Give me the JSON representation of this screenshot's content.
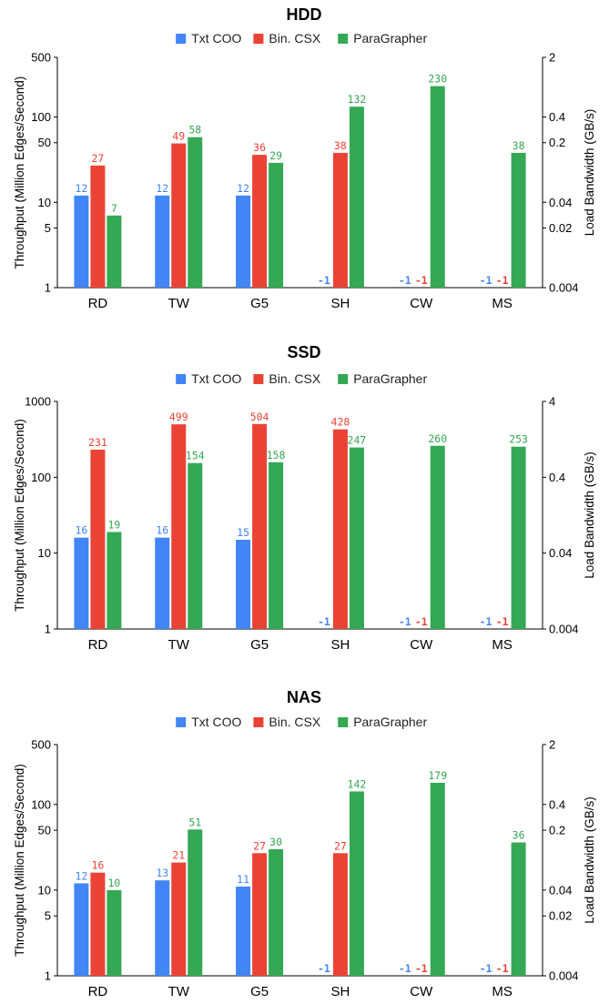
{
  "colors": {
    "Txt COO": "#4285f4",
    "Bin. CSX": "#ea4335",
    "ParaGrapher": "#34a853"
  },
  "chart_data": [
    {
      "type": "bar",
      "title": "HDD",
      "categories": [
        "RD",
        "TW",
        "G5",
        "SH",
        "CW",
        "MS"
      ],
      "series": [
        {
          "name": "Txt COO",
          "values": [
            12,
            12,
            12,
            -1,
            -1,
            -1
          ]
        },
        {
          "name": "Bin. CSX",
          "values": [
            27,
            49,
            36,
            38,
            -1,
            -1
          ]
        },
        {
          "name": "ParaGrapher",
          "values": [
            7,
            58,
            29,
            132,
            230,
            38
          ]
        }
      ],
      "ylabel": "Throughput (Million Edges/Second)",
      "y2label": "Load Bandwidth (GB/s)",
      "yscale": "log",
      "ylim": [
        1,
        500
      ],
      "yticks": [
        "1",
        "5",
        "10",
        "50",
        "100",
        "500"
      ],
      "y2ticks": [
        "0.004",
        "0.02",
        "0.04",
        "0.2",
        "0.4",
        "2"
      ],
      "legend": "top-center",
      "grid": false
    },
    {
      "type": "bar",
      "title": "SSD",
      "categories": [
        "RD",
        "TW",
        "G5",
        "SH",
        "CW",
        "MS"
      ],
      "series": [
        {
          "name": "Txt COO",
          "values": [
            16,
            16,
            15,
            -1,
            -1,
            -1
          ]
        },
        {
          "name": "Bin. CSX",
          "values": [
            231,
            499,
            504,
            428,
            -1,
            -1
          ]
        },
        {
          "name": "ParaGrapher",
          "values": [
            19,
            154,
            158,
            247,
            260,
            253
          ]
        }
      ],
      "ylabel": "Throughput (Million Edges/Second)",
      "y2label": "Load Bandwidth (GB/s)",
      "yscale": "log",
      "ylim": [
        1,
        1000
      ],
      "yticks": [
        "1",
        "10",
        "100",
        "1000"
      ],
      "y2ticks": [
        "0.004",
        "0.04",
        "0.4",
        "4"
      ],
      "legend": "top-center",
      "grid": false
    },
    {
      "type": "bar",
      "title": "NAS",
      "categories": [
        "RD",
        "TW",
        "G5",
        "SH",
        "CW",
        "MS"
      ],
      "series": [
        {
          "name": "Txt COO",
          "values": [
            12,
            13,
            11,
            -1,
            -1,
            -1
          ]
        },
        {
          "name": "Bin. CSX",
          "values": [
            16,
            21,
            27,
            27,
            -1,
            -1
          ]
        },
        {
          "name": "ParaGrapher",
          "values": [
            10,
            51,
            30,
            142,
            179,
            36
          ]
        }
      ],
      "ylabel": "Throughput (Million Edges/Second)",
      "y2label": "Load Bandwidth (GB/s)",
      "yscale": "log",
      "ylim": [
        1,
        500
      ],
      "yticks": [
        "1",
        "5",
        "10",
        "50",
        "100",
        "500"
      ],
      "y2ticks": [
        "0.004",
        "0.02",
        "0.04",
        "0.2",
        "0.4",
        "2"
      ],
      "legend": "top-center",
      "grid": false
    }
  ]
}
